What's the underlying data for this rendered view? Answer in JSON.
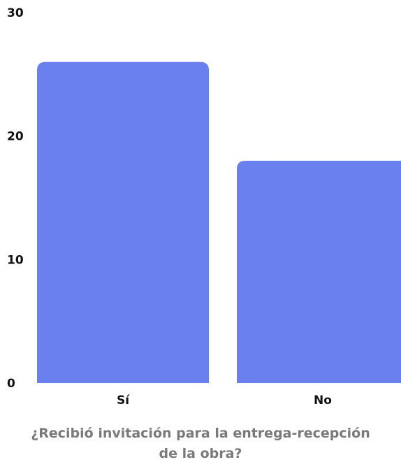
{
  "chart_data": {
    "type": "bar",
    "categories": [
      "Sí",
      "No"
    ],
    "values": [
      26,
      18
    ],
    "ylim": [
      0,
      30
    ],
    "yticks": [
      "0",
      "10",
      "20",
      "30"
    ],
    "xlabel": "¿Recibió invitación para la entrega-recepción de la obra?",
    "ylabel": "",
    "bar_color": "#6a80ef",
    "grid": false,
    "legend": "none"
  }
}
